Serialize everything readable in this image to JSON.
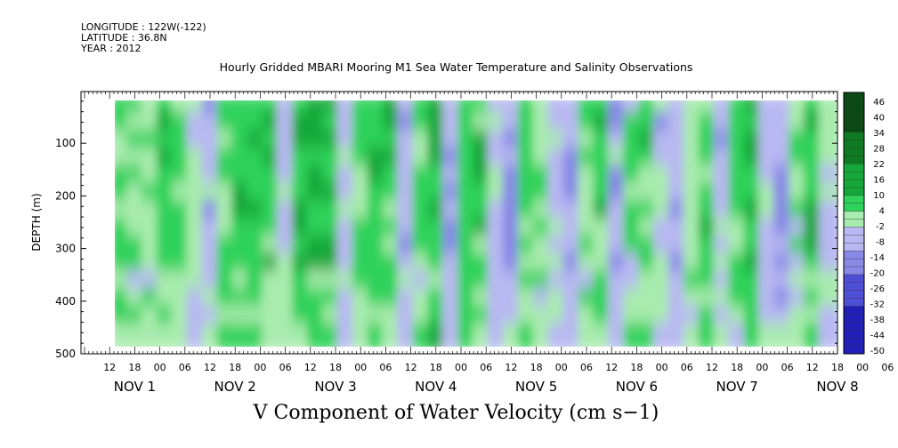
{
  "header": {
    "longitude": "LONGITUDE : 122W(-122)",
    "latitude": "LATITUDE : 36.8N",
    "year": "YEAR : 2012"
  },
  "chart_data": {
    "type": "heatmap",
    "title": "Hourly Gridded MBARI Mooring M1 Sea Water Temperature and Salinity Observations",
    "xlabel": "V Component of Water Velocity (cm s−1)",
    "ylabel": "DEPTH (m)",
    "ylim": [
      500,
      0
    ],
    "yticks": [
      100,
      200,
      300,
      400,
      500
    ],
    "y_extent_m": [
      18,
      485
    ],
    "x_range_hours": [
      0,
      180
    ],
    "x_tick_labels": [
      "12",
      "18",
      "00",
      "06",
      "12",
      "18",
      "00",
      "06",
      "12",
      "18",
      "00",
      "06",
      "12",
      "18",
      "00",
      "06",
      "12",
      "18",
      "00",
      "06",
      "12",
      "18",
      "00",
      "06",
      "12",
      "18",
      "00",
      "06",
      "12",
      "18",
      "00",
      "06"
    ],
    "x_day_labels": [
      "NOV  1",
      "NOV  2",
      "NOV  3",
      "NOV  4",
      "NOV  5",
      "NOV  6",
      "NOV  7",
      "NOV  8"
    ],
    "colorbar": {
      "labels": [
        "46",
        "40",
        "34",
        "28",
        "22",
        "16",
        "10",
        "4",
        "-2",
        "-8",
        "-14",
        "-20",
        "-26",
        "-32",
        "-38",
        "-44",
        "-50"
      ],
      "min": -50,
      "max": 50,
      "step": 3
    },
    "columns": [
      {
        "v": 6
      },
      {
        "v": 4
      },
      {
        "v": 2
      },
      {
        "v": 8
      },
      {
        "v": 5
      },
      {
        "v": -2
      },
      {
        "v": -6
      },
      {
        "v": 5
      },
      {
        "v": 10
      },
      {
        "v": 12
      },
      {
        "v": 8
      },
      {
        "v": -3
      },
      {
        "v": 9
      },
      {
        "v": 10
      },
      {
        "v": 12
      },
      {
        "v": -5
      },
      {
        "v": 6
      },
      {
        "v": 10
      },
      {
        "v": 8
      },
      {
        "v": -6
      },
      {
        "v": 4
      },
      {
        "v": 12
      },
      {
        "v": -8
      },
      {
        "v": 10
      },
      {
        "v": 8
      },
      {
        "v": -4
      },
      {
        "v": -8
      },
      {
        "v": 6
      },
      {
        "v": 3
      },
      {
        "v": -2
      },
      {
        "v": -10
      },
      {
        "v": 4
      },
      {
        "v": 8
      },
      {
        "v": -6
      },
      {
        "v": 3
      },
      {
        "v": 6
      },
      {
        "v": -4
      },
      {
        "v": -9
      },
      {
        "v": 4
      },
      {
        "v": 7
      },
      {
        "v": -5
      },
      {
        "v": 5
      },
      {
        "v": 10
      },
      {
        "v": -4
      },
      {
        "v": -8
      },
      {
        "v": 3
      },
      {
        "v": 9
      },
      {
        "v": -3
      }
    ]
  }
}
